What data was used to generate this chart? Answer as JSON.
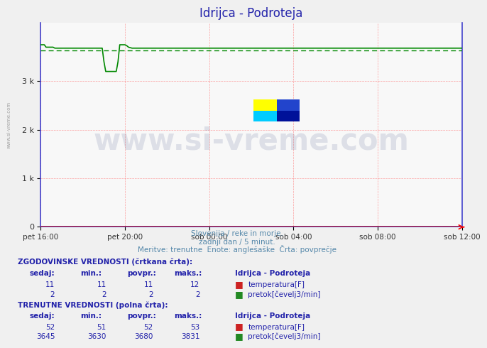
{
  "title": "Idrijca - Podroteja",
  "title_color": "#2222aa",
  "bg_color": "#f0f0f0",
  "plot_bg_color": "#f8f8f8",
  "border_color": "#4444cc",
  "grid_color": "#ff6666",
  "x_labels": [
    "pet 16:00",
    "pet 20:00",
    "sob 00:00",
    "sob 04:00",
    "sob 08:00",
    "sob 12:00"
  ],
  "x_ticks": [
    0,
    48,
    96,
    144,
    192,
    240
  ],
  "n_points": 289,
  "ylim": [
    0,
    4200
  ],
  "yticks": [
    0,
    1000,
    2000,
    3000
  ],
  "ytick_labels": [
    "0",
    "1 k",
    "2 k",
    "3 k"
  ],
  "temp_color": "#cc0000",
  "flow_color": "#008800",
  "watermark_text": "www.si-vreme.com",
  "watermark_color": "#1a2e6e",
  "subtitle1": "Slovenija / reke in morje.",
  "subtitle2": "zadnji dan / 5 minut.",
  "subtitle3": "Meritve: trenutne  Enote: anglešaške  Črta: povprečje",
  "subtitle_color": "#5588aa",
  "legend_hist_label": "ZGODOVINSKE VREDNOSTI (črtkana črta):",
  "legend_cur_label": "TRENUTNE VREDNOSTI (polna črta):",
  "legend_color": "#2222aa",
  "table_header_color": "#2222aa",
  "table_val_color": "#2222aa",
  "col_headers": [
    "sedaj:",
    "min.:",
    "povpr.:",
    "maks.:"
  ],
  "hist_temp_vals": [
    11,
    11,
    11,
    12
  ],
  "hist_flow_vals": [
    2,
    2,
    2,
    2
  ],
  "cur_temp_vals": [
    52,
    51,
    52,
    53
  ],
  "cur_flow_vals": [
    3645,
    3630,
    3680,
    3831
  ],
  "station_label": "Idrijca - Podroteja",
  "temp_label": "temperatura[F]",
  "flow_label": "pretok[čevelj3/min]",
  "left_label": "www.si-vreme.com"
}
